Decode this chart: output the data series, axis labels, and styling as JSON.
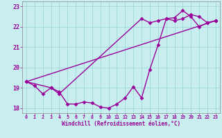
{
  "xlabel": "Windchill (Refroidissement éolien,°C)",
  "background_color": "#c8eef0",
  "line1_x": [
    0,
    1,
    2,
    3,
    4,
    5,
    6,
    7,
    8,
    9,
    10,
    11,
    12,
    13,
    14,
    15,
    16,
    17,
    18,
    19,
    20,
    21,
    22,
    23
  ],
  "line1_y": [
    19.3,
    19.1,
    18.7,
    19.0,
    18.8,
    18.2,
    18.2,
    18.3,
    18.25,
    18.05,
    18.0,
    18.2,
    18.5,
    19.05,
    18.5,
    19.9,
    21.1,
    22.4,
    22.3,
    22.4,
    22.6,
    22.5,
    22.2,
    22.3
  ],
  "line2_x": [
    0,
    23
  ],
  "line2_y": [
    19.3,
    22.3
  ],
  "line3_x": [
    0,
    3,
    4,
    14,
    15,
    16,
    17,
    18,
    19,
    20,
    21,
    22,
    23
  ],
  "line3_y": [
    19.3,
    19.0,
    18.7,
    22.4,
    22.2,
    22.3,
    22.4,
    22.45,
    22.8,
    22.5,
    22.0,
    22.2,
    22.3
  ],
  "line_color": "#990099",
  "marker": "D",
  "markersize": 2.5,
  "xlim": [
    -0.5,
    23.5
  ],
  "ylim": [
    17.75,
    23.25
  ],
  "yticks": [
    18,
    19,
    20,
    21,
    22,
    23
  ],
  "xticks": [
    0,
    1,
    2,
    3,
    4,
    5,
    6,
    7,
    8,
    9,
    10,
    11,
    12,
    13,
    14,
    15,
    16,
    17,
    18,
    19,
    20,
    21,
    22,
    23
  ],
  "grid_color": "#a0d8d8",
  "linewidth": 1.0
}
